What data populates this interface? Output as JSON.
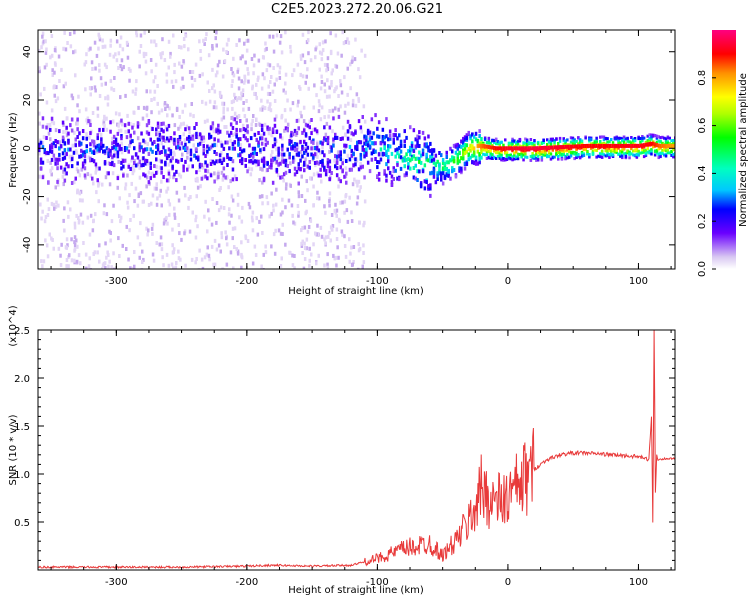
{
  "title": "C2E5.2023.272.20.06.G21",
  "chart_data": [
    {
      "type": "heatmap",
      "name": "spectrogram",
      "xlabel": "Height of straight line (km)",
      "ylabel": "Frequency (Hz)",
      "xlim": [
        -360,
        128
      ],
      "ylim": [
        -50,
        49
      ],
      "xticks": [
        -300,
        -200,
        -100,
        0,
        100
      ],
      "yticks": [
        -40,
        -20,
        0,
        20,
        40
      ],
      "colorbar": {
        "label": "Normalized spectral amplitude",
        "range": [
          0.0,
          1.0
        ],
        "ticks": [
          "0.0",
          "0.2",
          "0.4",
          "0.6",
          "0.8"
        ],
        "tick_values": [
          0.0,
          0.2,
          0.4,
          0.6,
          0.8
        ]
      },
      "ridge": {
        "x": [
          -360,
          -130,
          -110,
          -90,
          -75,
          -60,
          -50,
          -40,
          -30,
          -20,
          -10,
          0,
          20,
          60,
          100,
          110,
          115,
          128
        ],
        "freq": [
          0,
          0,
          2,
          -1,
          -4,
          -6,
          -7,
          -4,
          1,
          1,
          0,
          0,
          0,
          1,
          1,
          2,
          1,
          1
        ],
        "intensity": [
          0.2,
          0.22,
          0.28,
          0.35,
          0.42,
          0.45,
          0.5,
          0.6,
          0.75,
          0.85,
          0.9,
          0.93,
          0.95,
          0.9,
          0.92,
          0.9,
          0.85,
          0.8
        ]
      }
    },
    {
      "type": "line",
      "name": "snr",
      "xlabel": "Height of straight line (km)",
      "ylabel": "SNR (10 * v/v)",
      "scale_label": "(x10^4)",
      "xlim": [
        -360,
        128
      ],
      "ylim": [
        0,
        2.5
      ],
      "xticks": [
        -300,
        -200,
        -100,
        0,
        100
      ],
      "yticks": [
        0.5,
        1.0,
        1.5,
        2.0,
        2.5
      ],
      "ytick_labels": [
        "0.5",
        "1.0",
        "1.5",
        "2.0",
        "2.5"
      ],
      "color": "#e83a3a",
      "x": [
        -360,
        -300,
        -250,
        -200,
        -180,
        -150,
        -120,
        -100,
        -80,
        -60,
        -50,
        -40,
        -30,
        -20,
        -10,
        0,
        10,
        20,
        30,
        40,
        50,
        60,
        80,
        100,
        108,
        110,
        111,
        112,
        113,
        114,
        115,
        120,
        128
      ],
      "y": [
        0.03,
        0.03,
        0.03,
        0.04,
        0.05,
        0.04,
        0.05,
        0.12,
        0.22,
        0.28,
        0.15,
        0.3,
        0.5,
        0.85,
        0.7,
        0.75,
        0.9,
        1.05,
        1.15,
        1.2,
        1.22,
        1.22,
        1.2,
        1.18,
        1.15,
        1.6,
        0.5,
        2.5,
        0.8,
        1.2,
        1.15,
        1.16,
        1.16
      ]
    }
  ]
}
